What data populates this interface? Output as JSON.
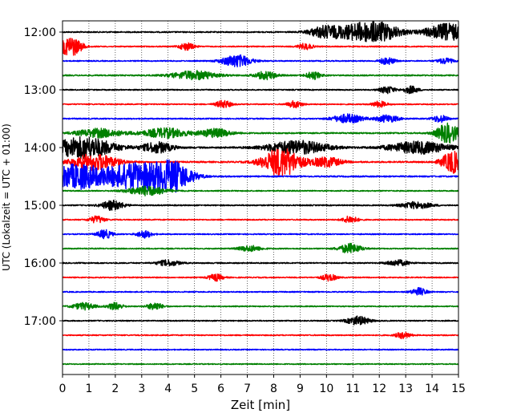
{
  "chart_data": {
    "type": "line",
    "title": "",
    "xlabel": "Zeit  [min]",
    "ylabel": "UTC (Lokalzeit = UTC + 01:00)",
    "xlim": [
      0,
      15
    ],
    "x_ticks": [
      "0",
      "1",
      "2",
      "3",
      "4",
      "5",
      "6",
      "7",
      "8",
      "9",
      "10",
      "11",
      "12",
      "13",
      "14",
      "15"
    ],
    "y_ticks": [
      "12:00",
      "13:00",
      "14:00",
      "15:00",
      "16:00",
      "17:00"
    ],
    "grid": "vertical dotted",
    "trace_cycle_colors": [
      "#000000",
      "#ff0000",
      "#0000ff",
      "#008000"
    ],
    "trace_interval_minutes": 15,
    "traces": [
      {
        "start": "12:00",
        "color": "#000000",
        "base_amplitude": 0.25,
        "bursts": [
          [
            9.9,
            0.4,
            2.2
          ],
          [
            11.3,
            0.7,
            3.5
          ],
          [
            12.2,
            0.5,
            2.2
          ],
          [
            14.6,
            0.6,
            3.5
          ]
        ]
      },
      {
        "start": "12:15",
        "color": "#ff0000",
        "base_amplitude": 0.22,
        "bursts": [
          [
            0.3,
            0.3,
            4.0
          ],
          [
            4.7,
            0.2,
            1.5
          ],
          [
            9.2,
            0.2,
            1.2
          ]
        ]
      },
      {
        "start": "12:30",
        "color": "#0000ff",
        "base_amplitude": 0.22,
        "bursts": [
          [
            6.6,
            0.4,
            2.5
          ],
          [
            14.5,
            0.2,
            1.2
          ],
          [
            12.3,
            0.2,
            1.5
          ]
        ]
      },
      {
        "start": "12:45",
        "color": "#008000",
        "base_amplitude": 0.26,
        "bursts": [
          [
            5.0,
            0.6,
            1.8
          ],
          [
            7.7,
            0.3,
            1.6
          ],
          [
            9.5,
            0.2,
            1.5
          ]
        ]
      },
      {
        "start": "13:00",
        "color": "#000000",
        "base_amplitude": 0.22,
        "bursts": [
          [
            12.3,
            0.2,
            1.5
          ],
          [
            13.2,
            0.2,
            1.5
          ]
        ]
      },
      {
        "start": "13:15",
        "color": "#ff0000",
        "base_amplitude": 0.22,
        "bursts": [
          [
            6.1,
            0.2,
            1.6
          ],
          [
            8.8,
            0.2,
            1.4
          ],
          [
            12.0,
            0.2,
            1.2
          ]
        ]
      },
      {
        "start": "13:30",
        "color": "#0000ff",
        "base_amplitude": 0.24,
        "bursts": [
          [
            10.8,
            0.4,
            1.8
          ],
          [
            12.3,
            0.3,
            1.5
          ],
          [
            14.3,
            0.2,
            1.5
          ]
        ]
      },
      {
        "start": "13:45",
        "color": "#008000",
        "base_amplitude": 0.28,
        "bursts": [
          [
            1.4,
            0.6,
            1.8
          ],
          [
            3.9,
            0.6,
            2.0
          ],
          [
            5.8,
            0.4,
            1.8
          ],
          [
            14.6,
            0.3,
            4.0
          ]
        ]
      },
      {
        "start": "14:00",
        "color": "#000000",
        "base_amplitude": 0.32,
        "bursts": [
          [
            0.8,
            0.8,
            4.5
          ],
          [
            3.6,
            0.4,
            2.2
          ],
          [
            8.9,
            0.8,
            2.8
          ],
          [
            13.5,
            0.8,
            2.5
          ]
        ]
      },
      {
        "start": "14:15",
        "color": "#ff0000",
        "base_amplitude": 0.3,
        "bursts": [
          [
            1.2,
            0.6,
            3.5
          ],
          [
            8.3,
            0.5,
            6.0
          ],
          [
            10.0,
            0.4,
            2.0
          ],
          [
            14.8,
            0.3,
            4.5
          ]
        ]
      },
      {
        "start": "14:30",
        "color": "#0000ff",
        "base_amplitude": 0.28,
        "bursts": [
          [
            0.5,
            0.7,
            5.0
          ],
          [
            2.8,
            0.9,
            5.5
          ],
          [
            4.2,
            0.5,
            5.0
          ]
        ]
      },
      {
        "start": "14:45",
        "color": "#008000",
        "base_amplitude": 0.22,
        "bursts": [
          [
            3.2,
            0.5,
            2.0
          ]
        ]
      },
      {
        "start": "15:00",
        "color": "#000000",
        "base_amplitude": 0.24,
        "bursts": [
          [
            1.9,
            0.3,
            2.0
          ],
          [
            13.4,
            0.4,
            1.4
          ]
        ]
      },
      {
        "start": "15:15",
        "color": "#ff0000",
        "base_amplitude": 0.22,
        "bursts": [
          [
            1.3,
            0.2,
            1.5
          ],
          [
            10.9,
            0.2,
            1.5
          ]
        ]
      },
      {
        "start": "15:30",
        "color": "#0000ff",
        "base_amplitude": 0.22,
        "bursts": [
          [
            1.6,
            0.2,
            1.8
          ],
          [
            3.1,
            0.2,
            1.5
          ]
        ]
      },
      {
        "start": "15:45",
        "color": "#008000",
        "base_amplitude": 0.22,
        "bursts": [
          [
            10.9,
            0.3,
            2.0
          ],
          [
            7.1,
            0.3,
            1.2
          ]
        ]
      },
      {
        "start": "16:00",
        "color": "#000000",
        "base_amplitude": 0.24,
        "bursts": [
          [
            4.0,
            0.3,
            1.2
          ],
          [
            12.7,
            0.3,
            1.2
          ]
        ]
      },
      {
        "start": "16:15",
        "color": "#ff0000",
        "base_amplitude": 0.22,
        "bursts": [
          [
            5.8,
            0.2,
            1.4
          ],
          [
            10.1,
            0.2,
            1.4
          ]
        ]
      },
      {
        "start": "16:30",
        "color": "#0000ff",
        "base_amplitude": 0.22,
        "bursts": [
          [
            13.5,
            0.2,
            1.6
          ]
        ]
      },
      {
        "start": "16:45",
        "color": "#008000",
        "base_amplitude": 0.22,
        "bursts": [
          [
            0.8,
            0.3,
            1.4
          ],
          [
            2.0,
            0.2,
            1.5
          ],
          [
            3.5,
            0.2,
            1.6
          ]
        ]
      },
      {
        "start": "17:00",
        "color": "#000000",
        "base_amplitude": 0.22,
        "bursts": [
          [
            11.2,
            0.3,
            1.8
          ]
        ]
      },
      {
        "start": "17:15",
        "color": "#ff0000",
        "base_amplitude": 0.22,
        "bursts": [
          [
            12.9,
            0.2,
            1.3
          ]
        ]
      },
      {
        "start": "17:30",
        "color": "#0000ff",
        "base_amplitude": 0.2,
        "bursts": []
      },
      {
        "start": "17:45",
        "color": "#008000",
        "base_amplitude": 0.2,
        "bursts": []
      }
    ]
  }
}
